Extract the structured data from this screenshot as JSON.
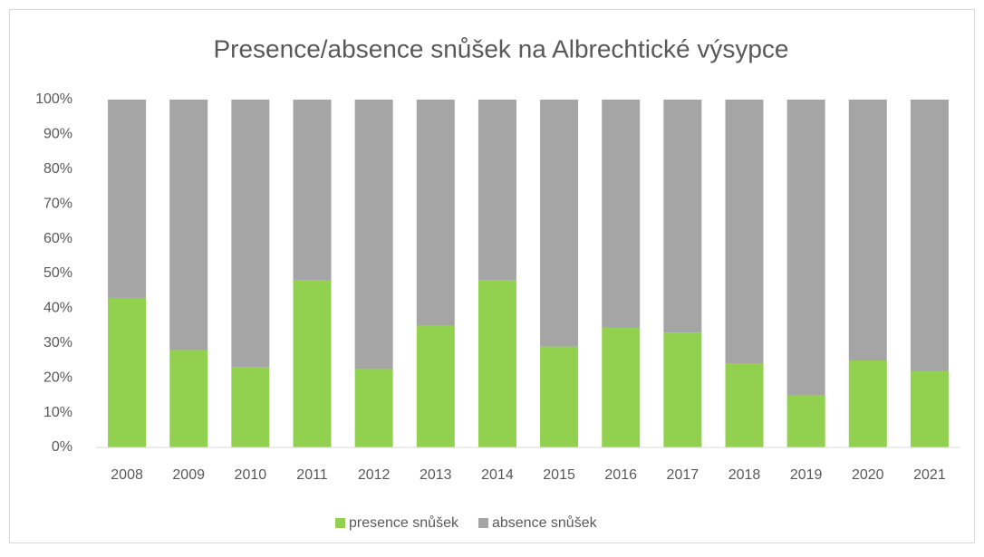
{
  "chart_data": {
    "type": "stacked_bar",
    "title": "Presence/absence snůšek na Albrechtické výsypce",
    "categories": [
      "2008",
      "2009",
      "2010",
      "2011",
      "2012",
      "2013",
      "2014",
      "2015",
      "2016",
      "2017",
      "2018",
      "2019",
      "2020",
      "2021"
    ],
    "series": [
      {
        "name": "presence snůšek",
        "color": "#92d050",
        "values": [
          43,
          28,
          23,
          48,
          22.5,
          35,
          48,
          29,
          34.5,
          33,
          24,
          15,
          25,
          22
        ]
      },
      {
        "name": "absence snůšek",
        "color": "#a5a5a5",
        "values": [
          57,
          72,
          77,
          52,
          77.5,
          65,
          52,
          71,
          65.5,
          67,
          76,
          85,
          75,
          78
        ]
      }
    ],
    "ylim": [
      0,
      100
    ],
    "yticks": [
      {
        "value": 0,
        "label": "0%"
      },
      {
        "value": 10,
        "label": "10%"
      },
      {
        "value": 20,
        "label": "20%"
      },
      {
        "value": 30,
        "label": "30%"
      },
      {
        "value": 40,
        "label": "40%"
      },
      {
        "value": 50,
        "label": "50%"
      },
      {
        "value": 60,
        "label": "60%"
      },
      {
        "value": 70,
        "label": "70%"
      },
      {
        "value": 80,
        "label": "80%"
      },
      {
        "value": 90,
        "label": "90%"
      },
      {
        "value": 100,
        "label": "100%"
      }
    ],
    "grid": false,
    "legend": "bottom"
  }
}
